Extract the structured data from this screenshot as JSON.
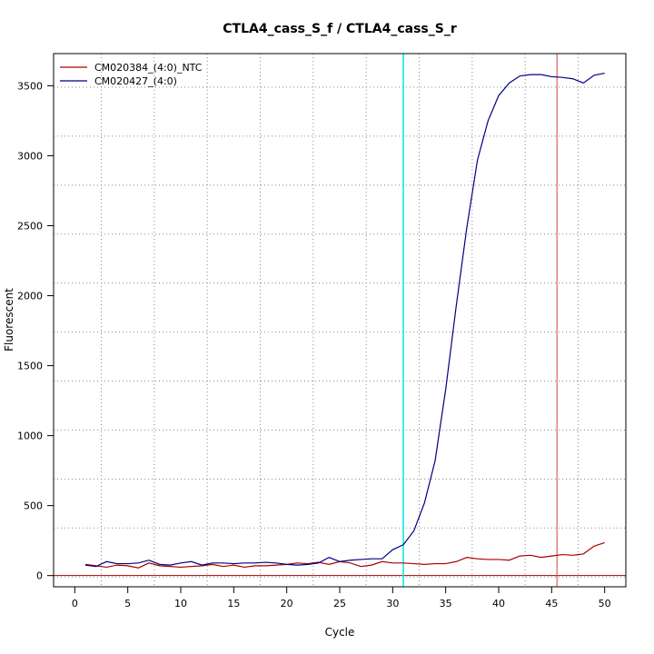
{
  "chart_data": {
    "type": "line",
    "title": "CTLA4_cass_S_f / CTLA4_cass_S_r",
    "xlabel": "Cycle",
    "ylabel": "Fluorescent",
    "xlim": [
      -2,
      52
    ],
    "ylim": [
      -80,
      3730
    ],
    "x_ticks": [
      0,
      5,
      10,
      15,
      20,
      25,
      30,
      35,
      40,
      45,
      50
    ],
    "y_ticks": [
      0,
      500,
      1000,
      1500,
      2000,
      2500,
      3000,
      3500
    ],
    "x_grid": [
      2.5,
      7.5,
      12.5,
      17.5,
      22.5,
      27.5,
      32.5,
      37.5,
      42.5,
      47.5
    ],
    "y_grid": [
      -10,
      340,
      690,
      1040,
      1390,
      1740,
      2090,
      2440,
      2790,
      3140,
      3490
    ],
    "grid": true,
    "legend_position": "top-left",
    "threshold_x": 31,
    "threshold_y": 0,
    "cutoff_x": 45.5,
    "colors": {
      "CM020384": "#aa0000",
      "CM020427": "#000080",
      "threshold_x": "#00e5ee",
      "threshold_y": "#aa0000",
      "cutoff_x": "#cc4444",
      "grid": "#888888"
    },
    "x": [
      1,
      2,
      3,
      4,
      5,
      6,
      7,
      8,
      9,
      10,
      11,
      12,
      13,
      14,
      15,
      16,
      17,
      18,
      19,
      20,
      21,
      22,
      23,
      24,
      25,
      26,
      27,
      28,
      29,
      30,
      31,
      32,
      33,
      34,
      35,
      36,
      37,
      38,
      39,
      40,
      41,
      42,
      43,
      44,
      45,
      46,
      47,
      48,
      49,
      50
    ],
    "series": [
      {
        "name": "CM020384_(4:0)_NTC",
        "values": [
          80,
          70,
          60,
          75,
          70,
          55,
          90,
          70,
          65,
          60,
          65,
          70,
          80,
          65,
          75,
          60,
          70,
          70,
          75,
          80,
          90,
          85,
          95,
          80,
          100,
          90,
          65,
          75,
          100,
          90,
          90,
          85,
          80,
          85,
          85,
          100,
          130,
          120,
          115,
          115,
          110,
          140,
          145,
          130,
          140,
          150,
          145,
          155,
          210,
          235
        ]
      },
      {
        "name": "CM020427_(4:0)",
        "values": [
          75,
          65,
          100,
          85,
          85,
          90,
          110,
          80,
          75,
          90,
          100,
          75,
          90,
          90,
          85,
          90,
          90,
          95,
          90,
          80,
          75,
          80,
          90,
          130,
          100,
          110,
          115,
          120,
          120,
          185,
          220,
          320,
          520,
          820,
          1330,
          1930,
          2490,
          2970,
          3250,
          3430,
          3520,
          3570,
          3580,
          3580,
          3565,
          3560,
          3550,
          3520,
          3575,
          3590
        ]
      }
    ]
  }
}
